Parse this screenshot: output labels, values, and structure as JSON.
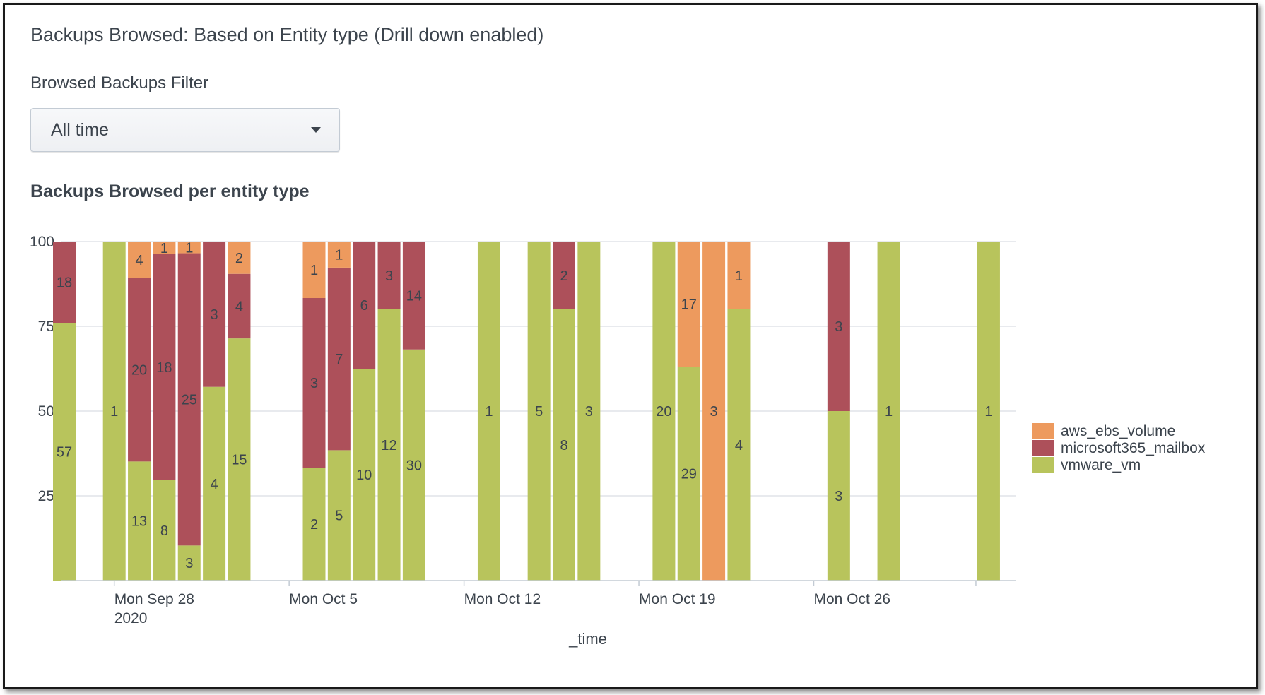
{
  "panel": {
    "title": "Backups Browsed: Based on Entity type (Drill down enabled)",
    "filter_label": "Browsed Backups Filter",
    "filter_value": "All time",
    "chart_title": "Backups Browsed per entity type"
  },
  "colors": {
    "aws_ebs_volume": "#ed9a5e",
    "microsoft365_mailbox": "#ad505a",
    "vmware_vm": "#b8c45c",
    "grid": "#e1e4e8",
    "axis": "#c3cbd4"
  },
  "chart_data": {
    "type": "bar",
    "stacked": "percent",
    "title": "Backups Browsed per entity type",
    "xlabel": "_time",
    "ylabel": "",
    "ylim": [
      0,
      100
    ],
    "y_ticks": [
      25,
      50,
      75,
      100
    ],
    "x_tick_labels": [
      {
        "date": "2020-09-28",
        "label": "Mon Sep 28",
        "sublabel": "2020"
      },
      {
        "date": "2020-10-05",
        "label": "Mon Oct 5"
      },
      {
        "date": "2020-10-12",
        "label": "Mon Oct 12"
      },
      {
        "date": "2020-10-19",
        "label": "Mon Oct 19"
      },
      {
        "date": "2020-10-26",
        "label": "Mon Oct 26"
      }
    ],
    "x_range": [
      "2020-09-26",
      "2020-11-02"
    ],
    "grid": true,
    "legend_position": "right",
    "series_order": [
      "vmware_vm",
      "microsoft365_mailbox",
      "aws_ebs_volume"
    ],
    "legend": [
      "aws_ebs_volume",
      "microsoft365_mailbox",
      "vmware_vm"
    ],
    "bars": [
      {
        "date": "2020-09-26",
        "vmware_vm": 57,
        "microsoft365_mailbox": 18,
        "aws_ebs_volume": 0
      },
      {
        "date": "2020-09-27",
        "vmware_vm": 0,
        "microsoft365_mailbox": 0,
        "aws_ebs_volume": 0
      },
      {
        "date": "2020-09-28",
        "vmware_vm": 1,
        "microsoft365_mailbox": 0,
        "aws_ebs_volume": 0
      },
      {
        "date": "2020-09-29",
        "vmware_vm": 13,
        "microsoft365_mailbox": 20,
        "aws_ebs_volume": 4
      },
      {
        "date": "2020-09-30",
        "vmware_vm": 8,
        "microsoft365_mailbox": 18,
        "aws_ebs_volume": 1
      },
      {
        "date": "2020-10-01",
        "vmware_vm": 3,
        "microsoft365_mailbox": 25,
        "aws_ebs_volume": 1
      },
      {
        "date": "2020-10-02",
        "vmware_vm": 4,
        "microsoft365_mailbox": 3,
        "aws_ebs_volume": 0
      },
      {
        "date": "2020-10-03",
        "vmware_vm": 15,
        "microsoft365_mailbox": 4,
        "aws_ebs_volume": 2
      },
      {
        "date": "2020-10-04",
        "vmware_vm": 0,
        "microsoft365_mailbox": 0,
        "aws_ebs_volume": 0
      },
      {
        "date": "2020-10-05",
        "vmware_vm": 0,
        "microsoft365_mailbox": 0,
        "aws_ebs_volume": 0
      },
      {
        "date": "2020-10-06",
        "vmware_vm": 2,
        "microsoft365_mailbox": 3,
        "aws_ebs_volume": 1
      },
      {
        "date": "2020-10-07",
        "vmware_vm": 5,
        "microsoft365_mailbox": 7,
        "aws_ebs_volume": 1
      },
      {
        "date": "2020-10-08",
        "vmware_vm": 10,
        "microsoft365_mailbox": 6,
        "aws_ebs_volume": 0
      },
      {
        "date": "2020-10-09",
        "vmware_vm": 12,
        "microsoft365_mailbox": 3,
        "aws_ebs_volume": 0
      },
      {
        "date": "2020-10-10",
        "vmware_vm": 30,
        "microsoft365_mailbox": 14,
        "aws_ebs_volume": 0
      },
      {
        "date": "2020-10-11",
        "vmware_vm": 0,
        "microsoft365_mailbox": 0,
        "aws_ebs_volume": 0
      },
      {
        "date": "2020-10-12",
        "vmware_vm": 0,
        "microsoft365_mailbox": 0,
        "aws_ebs_volume": 0
      },
      {
        "date": "2020-10-13",
        "vmware_vm": 1,
        "microsoft365_mailbox": 0,
        "aws_ebs_volume": 0
      },
      {
        "date": "2020-10-14",
        "vmware_vm": 0,
        "microsoft365_mailbox": 0,
        "aws_ebs_volume": 0
      },
      {
        "date": "2020-10-15",
        "vmware_vm": 5,
        "microsoft365_mailbox": 0,
        "aws_ebs_volume": 0
      },
      {
        "date": "2020-10-16",
        "vmware_vm": 8,
        "microsoft365_mailbox": 2,
        "aws_ebs_volume": 0
      },
      {
        "date": "2020-10-17",
        "vmware_vm": 3,
        "microsoft365_mailbox": 0,
        "aws_ebs_volume": 0
      },
      {
        "date": "2020-10-18",
        "vmware_vm": 0,
        "microsoft365_mailbox": 0,
        "aws_ebs_volume": 0
      },
      {
        "date": "2020-10-19",
        "vmware_vm": 0,
        "microsoft365_mailbox": 0,
        "aws_ebs_volume": 0
      },
      {
        "date": "2020-10-20",
        "vmware_vm": 20,
        "microsoft365_mailbox": 0,
        "aws_ebs_volume": 0
      },
      {
        "date": "2020-10-21",
        "vmware_vm": 29,
        "microsoft365_mailbox": 0,
        "aws_ebs_volume": 17
      },
      {
        "date": "2020-10-22",
        "vmware_vm": 0,
        "microsoft365_mailbox": 0,
        "aws_ebs_volume": 3
      },
      {
        "date": "2020-10-23",
        "vmware_vm": 4,
        "microsoft365_mailbox": 0,
        "aws_ebs_volume": 1
      },
      {
        "date": "2020-10-24",
        "vmware_vm": 0,
        "microsoft365_mailbox": 0,
        "aws_ebs_volume": 0
      },
      {
        "date": "2020-10-25",
        "vmware_vm": 0,
        "microsoft365_mailbox": 0,
        "aws_ebs_volume": 0
      },
      {
        "date": "2020-10-26",
        "vmware_vm": 0,
        "microsoft365_mailbox": 0,
        "aws_ebs_volume": 0
      },
      {
        "date": "2020-10-27",
        "vmware_vm": 3,
        "microsoft365_mailbox": 3,
        "aws_ebs_volume": 0
      },
      {
        "date": "2020-10-28",
        "vmware_vm": 0,
        "microsoft365_mailbox": 0,
        "aws_ebs_volume": 0
      },
      {
        "date": "2020-10-29",
        "vmware_vm": 1,
        "microsoft365_mailbox": 0,
        "aws_ebs_volume": 0
      },
      {
        "date": "2020-10-30",
        "vmware_vm": 0,
        "microsoft365_mailbox": 0,
        "aws_ebs_volume": 0
      },
      {
        "date": "2020-10-31",
        "vmware_vm": 0,
        "microsoft365_mailbox": 0,
        "aws_ebs_volume": 0
      },
      {
        "date": "2020-11-01",
        "vmware_vm": 0,
        "microsoft365_mailbox": 0,
        "aws_ebs_volume": 0
      },
      {
        "date": "2020-11-02",
        "vmware_vm": 1,
        "microsoft365_mailbox": 0,
        "aws_ebs_volume": 0
      }
    ]
  }
}
